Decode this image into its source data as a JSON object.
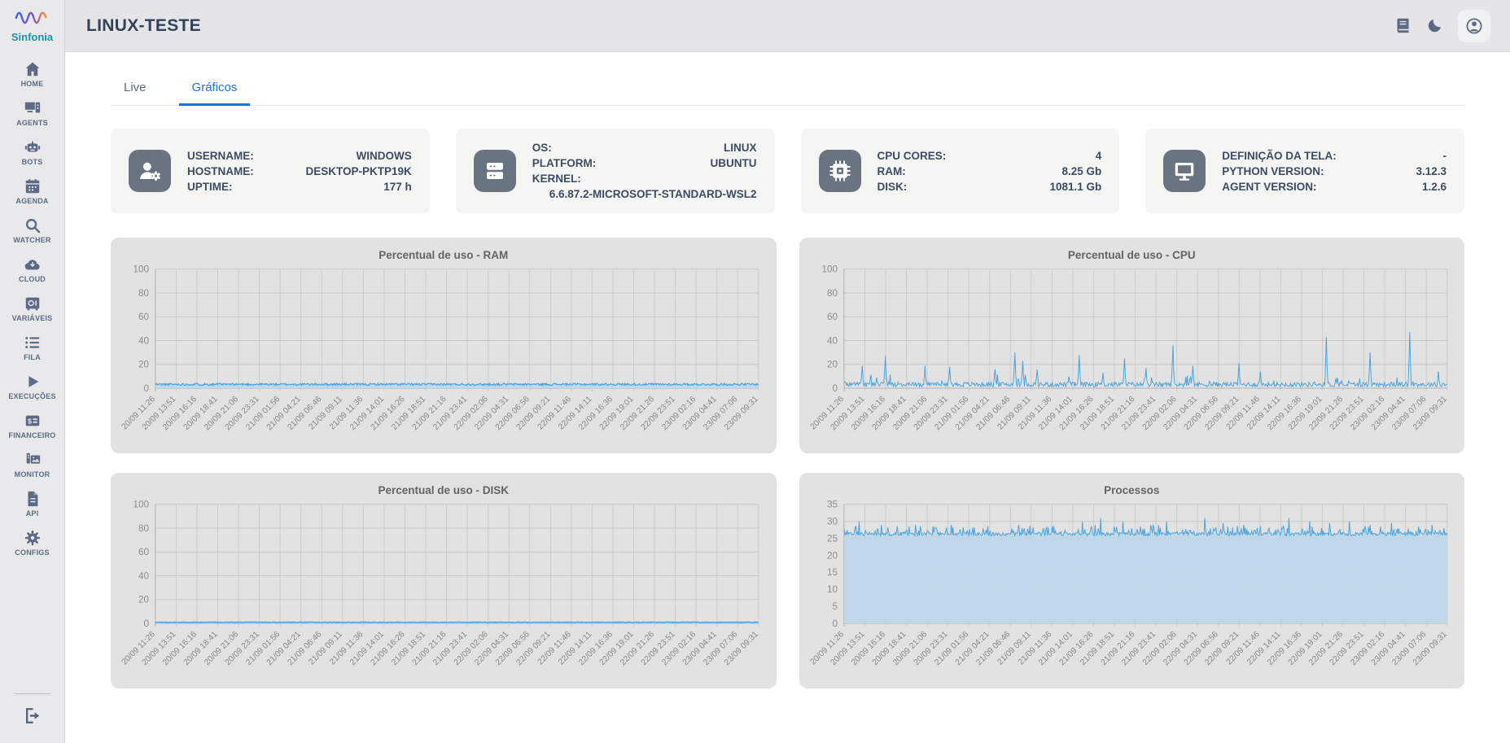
{
  "app": {
    "logo_text": "Sinfonia",
    "accent": "#1a73e8",
    "logo_text_color": "#1795ab"
  },
  "header": {
    "title": "LINUX-TESTE",
    "icons": [
      {
        "name": "docs-icon"
      },
      {
        "name": "dark-mode-icon"
      },
      {
        "name": "account-icon"
      }
    ]
  },
  "tabs": [
    {
      "label": "Live",
      "active": false
    },
    {
      "label": "Gráficos",
      "active": true
    }
  ],
  "sidebar": {
    "items": [
      {
        "label": "HOME",
        "icon": "home"
      },
      {
        "label": "AGENTS",
        "icon": "agents"
      },
      {
        "label": "BOTS",
        "icon": "bots"
      },
      {
        "label": "AGENDA",
        "icon": "agenda"
      },
      {
        "label": "WATCHER",
        "icon": "watcher"
      },
      {
        "label": "CLOUD",
        "icon": "cloud"
      },
      {
        "label": "VARIÁVEIS",
        "icon": "variaveis"
      },
      {
        "label": "FILA",
        "icon": "fila"
      },
      {
        "label": "EXECUÇÕES",
        "icon": "execucoes"
      },
      {
        "label": "FINANCEIRO",
        "icon": "financeiro"
      },
      {
        "label": "MONITOR",
        "icon": "monitor"
      },
      {
        "label": "API",
        "icon": "api"
      },
      {
        "label": "CONFIGS",
        "icon": "configs"
      }
    ],
    "logout_icon": "logout"
  },
  "info_cards": [
    {
      "icon": "user-gear",
      "rows": [
        {
          "label": "USERNAME:",
          "value": "WINDOWS"
        },
        {
          "label": "HOSTNAME:",
          "value": "DESKTOP-PKTP19K"
        },
        {
          "label": "UPTIME:",
          "value": "177 h"
        }
      ]
    },
    {
      "icon": "server",
      "rows": [
        {
          "label": "OS:",
          "value": "LINUX"
        },
        {
          "label": "PLATFORM:",
          "value": "UBUNTU"
        },
        {
          "label": "KERNEL:",
          "value": "6.6.87.2-MICROSOFT-STANDARD-WSL2",
          "own_line": true
        }
      ]
    },
    {
      "icon": "cpu-chip",
      "rows": [
        {
          "label": "CPU CORES:",
          "value": "4"
        },
        {
          "label": "RAM:",
          "value": "8.25 Gb"
        },
        {
          "label": "DISK:",
          "value": "1081.1 Gb"
        }
      ]
    },
    {
      "icon": "display",
      "rows": [
        {
          "label": "DEFINIÇÃO DA TELA:",
          "value": "-"
        },
        {
          "label": "PYTHON VERSION:",
          "value": "3.12.3"
        },
        {
          "label": "AGENT VERSION:",
          "value": "1.2.6"
        }
      ]
    }
  ],
  "chart_data": [
    {
      "type": "area",
      "title": "Percentual de uso - RAM",
      "xlabel": "",
      "ylabel": "",
      "ylim": [
        0,
        100
      ],
      "yticks": [
        0,
        20,
        40,
        60,
        80,
        100
      ],
      "x_labels": [
        "20/09 11:26",
        "20/09 13:51",
        "20/09 16:16",
        "20/09 18:41",
        "20/09 21:06",
        "20/09 23:31",
        "21/09 01:56",
        "21/09 04:21",
        "21/09 06:46",
        "21/09 09:11",
        "21/09 11:36",
        "21/09 14:01",
        "21/09 16:26",
        "21/09 18:51",
        "21/09 21:16",
        "21/09 23:41",
        "22/09 02:06",
        "22/09 04:31",
        "22/09 06:56",
        "22/09 09:21",
        "22/09 11:46",
        "22/09 14:11",
        "22/09 16:36",
        "22/09 19:01",
        "22/09 21:26",
        "22/09 23:51",
        "23/09 02:16",
        "23/09 04:41",
        "23/09 07:06",
        "23/09 09:31"
      ],
      "baseline": 3,
      "noise": 0.9,
      "spikes": [],
      "seed": 11,
      "line_color": "#4aa3e0",
      "fill_color": "#bdd8ec",
      "stroke_width": 1.3,
      "grid": true,
      "legend": "none"
    },
    {
      "type": "line",
      "title": "Percentual de uso - CPU",
      "xlabel": "",
      "ylabel": "",
      "ylim": [
        0,
        100
      ],
      "yticks": [
        0,
        20,
        40,
        60,
        80,
        100
      ],
      "x_labels": [
        "20/09 11:26",
        "20/09 13:51",
        "20/09 16:16",
        "20/09 18:41",
        "20/09 21:06",
        "20/09 23:31",
        "21/09 01:56",
        "21/09 04:21",
        "21/09 06:46",
        "21/09 09:11",
        "21/09 11:36",
        "21/09 14:01",
        "21/09 16:26",
        "21/09 18:51",
        "21/09 21:16",
        "21/09 23:41",
        "22/09 02:06",
        "22/09 04:31",
        "22/09 06:56",
        "22/09 09:21",
        "22/09 11:46",
        "22/09 14:11",
        "22/09 16:36",
        "22/09 19:01",
        "22/09 21:26",
        "22/09 23:51",
        "23/09 02:16",
        "23/09 04:41",
        "23/09 07:06",
        "23/09 09:31"
      ],
      "baseline": 2.6,
      "noise": 2.0,
      "micro": {
        "p": 0.05,
        "h": 8
      },
      "spikes": [
        {
          "x": 0.03,
          "y": 19
        },
        {
          "x": 0.068,
          "y": 27
        },
        {
          "x": 0.135,
          "y": 19
        },
        {
          "x": 0.175,
          "y": 18
        },
        {
          "x": 0.25,
          "y": 16
        },
        {
          "x": 0.283,
          "y": 30
        },
        {
          "x": 0.296,
          "y": 23
        },
        {
          "x": 0.32,
          "y": 16
        },
        {
          "x": 0.373,
          "y": 10
        },
        {
          "x": 0.39,
          "y": 28
        },
        {
          "x": 0.43,
          "y": 13
        },
        {
          "x": 0.465,
          "y": 25
        },
        {
          "x": 0.5,
          "y": 17
        },
        {
          "x": 0.545,
          "y": 36
        },
        {
          "x": 0.578,
          "y": 19
        },
        {
          "x": 0.655,
          "y": 21
        },
        {
          "x": 0.69,
          "y": 14
        },
        {
          "x": 0.8,
          "y": 43
        },
        {
          "x": 0.872,
          "y": 30
        },
        {
          "x": 0.938,
          "y": 47
        },
        {
          "x": 0.985,
          "y": 14
        }
      ],
      "seed": 23,
      "line_color": "#4aa3e0",
      "fill_color": null,
      "stroke_width": 1,
      "grid": true,
      "legend": "none"
    },
    {
      "type": "area",
      "title": "Percentual de uso - DISK",
      "xlabel": "",
      "ylabel": "",
      "ylim": [
        0,
        100
      ],
      "yticks": [
        0,
        20,
        40,
        60,
        80,
        100
      ],
      "x_labels": [
        "20/09 11:26",
        "20/09 13:51",
        "20/09 16:16",
        "20/09 18:41",
        "20/09 21:06",
        "20/09 23:31",
        "21/09 01:56",
        "21/09 04:21",
        "21/09 06:46",
        "21/09 09:11",
        "21/09 11:36",
        "21/09 14:01",
        "21/09 16:26",
        "21/09 18:51",
        "21/09 21:16",
        "21/09 23:41",
        "22/09 02:06",
        "22/09 04:31",
        "22/09 06:56",
        "22/09 09:21",
        "22/09 11:46",
        "22/09 14:11",
        "22/09 16:36",
        "22/09 19:01",
        "22/09 21:26",
        "22/09 23:51",
        "23/09 02:16",
        "23/09 04:41",
        "23/09 07:06",
        "23/09 09:31"
      ],
      "baseline": 0.9,
      "noise": 0.22,
      "spikes": [],
      "seed": 31,
      "line_color": "#4aa3e0",
      "fill_color": "#bdd8ec",
      "stroke_width": 1.6,
      "grid": true,
      "legend": "none"
    },
    {
      "type": "area",
      "title": "Processos",
      "xlabel": "",
      "ylabel": "",
      "ylim": [
        0,
        35
      ],
      "yticks": [
        0,
        5,
        10,
        15,
        20,
        25,
        30,
        35
      ],
      "x_labels": [
        "20/09 11:26",
        "20/09 13:51",
        "20/09 16:16",
        "20/09 18:41",
        "20/09 21:06",
        "20/09 23:31",
        "21/09 01:56",
        "21/09 04:21",
        "21/09 06:46",
        "21/09 09:11",
        "21/09 11:36",
        "21/09 14:01",
        "21/09 16:26",
        "21/09 18:51",
        "21/09 21:16",
        "21/09 23:41",
        "22/09 02:06",
        "22/09 04:31",
        "22/09 06:56",
        "22/09 09:21",
        "22/09 11:46",
        "22/09 14:11",
        "22/09 16:36",
        "22/09 19:01",
        "22/09 21:26",
        "22/09 23:51",
        "23/09 02:16",
        "23/09 04:41",
        "23/09 07:06",
        "23/09 09:31"
      ],
      "baseline": 26.1,
      "noise": 0.5,
      "micro": {
        "p": 0.3,
        "h": 2.2
      },
      "spikes": [
        {
          "x": 0.025,
          "y": 30
        },
        {
          "x": 0.062,
          "y": 29
        },
        {
          "x": 0.118,
          "y": 29
        },
        {
          "x": 0.178,
          "y": 29
        },
        {
          "x": 0.238,
          "y": 28.5
        },
        {
          "x": 0.29,
          "y": 29
        },
        {
          "x": 0.345,
          "y": 28.5
        },
        {
          "x": 0.395,
          "y": 30
        },
        {
          "x": 0.425,
          "y": 31
        },
        {
          "x": 0.463,
          "y": 30
        },
        {
          "x": 0.508,
          "y": 29
        },
        {
          "x": 0.535,
          "y": 30
        },
        {
          "x": 0.598,
          "y": 31
        },
        {
          "x": 0.628,
          "y": 29.5
        },
        {
          "x": 0.663,
          "y": 29
        },
        {
          "x": 0.738,
          "y": 31
        },
        {
          "x": 0.772,
          "y": 30
        },
        {
          "x": 0.805,
          "y": 29.5
        },
        {
          "x": 0.838,
          "y": 30
        },
        {
          "x": 0.872,
          "y": 29
        },
        {
          "x": 0.908,
          "y": 29.5
        },
        {
          "x": 0.952,
          "y": 28.5
        },
        {
          "x": 0.975,
          "y": 29
        }
      ],
      "seed": 47,
      "line_color": "#4aa3e0",
      "fill_color": "#bdd7e9",
      "stroke_width": 1,
      "grid": true,
      "legend": "none"
    }
  ],
  "colors": {
    "sidebar_bg": "#e9e9eb",
    "header_bg": "#e5e5e7",
    "card_bg": "#f5f5f3",
    "chart_card_bg": "#e2e2e3",
    "icon_slate": "#5b6b85",
    "tile_bg": "#6a7380",
    "chart_line": "#4aa3e0",
    "chart_fill": "#bdd8ec",
    "active_tab": "#1a73e8"
  }
}
